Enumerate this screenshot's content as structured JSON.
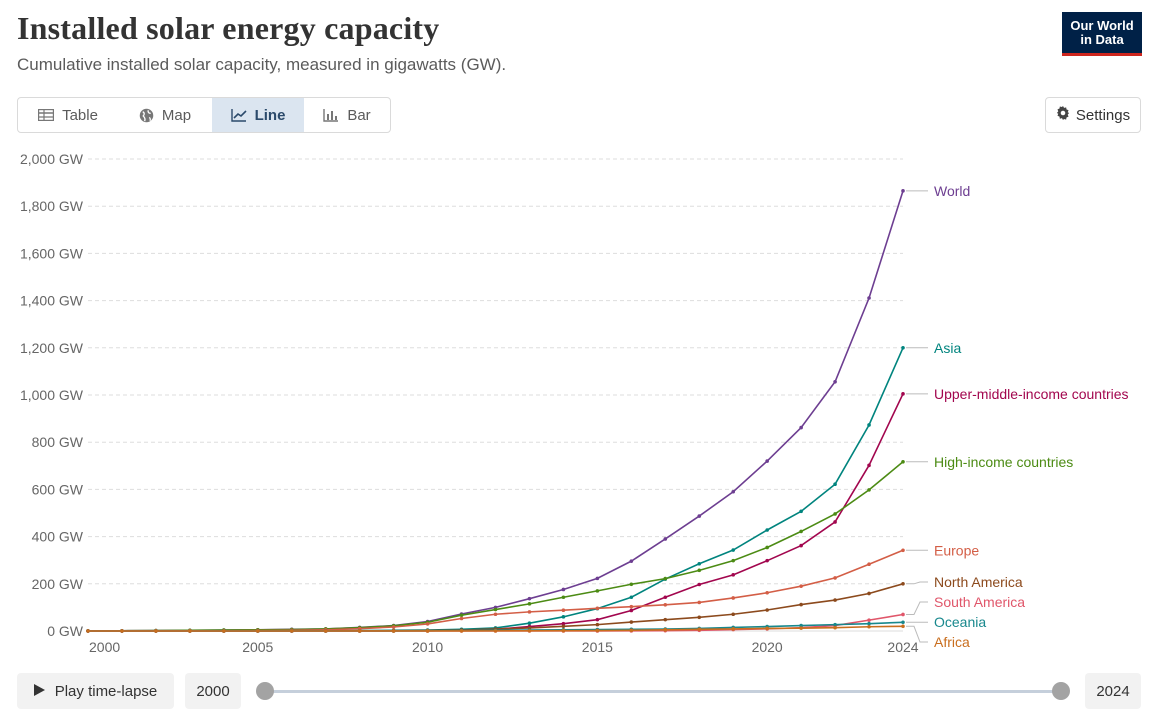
{
  "header": {
    "title": "Installed solar energy capacity",
    "subtitle": "Cumulative installed solar capacity, measured in gigawatts (GW).",
    "logo_text": "Our World in Data"
  },
  "tabs": [
    {
      "label": "Table",
      "icon": "table-icon"
    },
    {
      "label": "Map",
      "icon": "globe-icon"
    },
    {
      "label": "Line",
      "icon": "line-chart-icon",
      "active": true
    },
    {
      "label": "Bar",
      "icon": "bar-chart-icon"
    }
  ],
  "settings_label": "Settings",
  "timeline": {
    "play_label": "Play time-lapse",
    "start_year": "2000",
    "end_year": "2024"
  },
  "colors": {
    "World": "#6d3e91",
    "Asia": "#00847e",
    "Upper-middle-income countries": "#a2064e",
    "High-income countries": "#4c8b14",
    "Europe": "#d35e46",
    "North America": "#8c4a1d",
    "South America": "#e0566a",
    "Oceania": "#18888d",
    "Africa": "#c96e1e",
    "grid": "#dddddd",
    "axis_text": "#666666"
  },
  "chart_data": {
    "type": "line",
    "title": "Installed solar energy capacity",
    "ylabel": "",
    "xlabel": "",
    "ylim": [
      0,
      2000
    ],
    "xlim": [
      2000,
      2024
    ],
    "y_ticks": [
      "0 GW",
      "200 GW",
      "400 GW",
      "600 GW",
      "800 GW",
      "1,000 GW",
      "1,200 GW",
      "1,400 GW",
      "1,600 GW",
      "1,800 GW",
      "2,000 GW"
    ],
    "x_ticks": [
      "2000",
      "2005",
      "2010",
      "2015",
      "2020",
      "2024"
    ],
    "grid": "horizontal dashed",
    "legend": "labels at line ends (right)",
    "x": [
      2000,
      2001,
      2002,
      2003,
      2004,
      2005,
      2006,
      2007,
      2008,
      2009,
      2010,
      2011,
      2012,
      2013,
      2014,
      2015,
      2016,
      2017,
      2018,
      2019,
      2020,
      2021,
      2022,
      2023,
      2024
    ],
    "series": [
      {
        "name": "World",
        "values": [
          1,
          1,
          2,
          3,
          4,
          5,
          7,
          9,
          15,
          23,
          40,
          72,
          100,
          137,
          176,
          223,
          296,
          390,
          487,
          590,
          720,
          862,
          1056,
          1411,
          1865
        ]
      },
      {
        "name": "Asia",
        "values": [
          0.3,
          0.4,
          0.5,
          0.6,
          0.8,
          1,
          1.2,
          1.5,
          2,
          3,
          4,
          7,
          13,
          33,
          60,
          95,
          143,
          220,
          285,
          343,
          428,
          507,
          622,
          873,
          1200
        ]
      },
      {
        "name": "Upper-middle-income countries",
        "values": [
          0,
          0,
          0,
          0,
          0,
          0,
          0,
          0,
          0.2,
          0.5,
          1,
          3,
          7,
          19,
          31,
          48,
          87,
          143,
          197,
          238,
          298,
          362,
          462,
          702,
          1005
        ]
      },
      {
        "name": "High-income countries",
        "values": [
          1,
          1,
          2,
          3,
          4,
          5,
          6,
          9,
          14,
          22,
          37,
          67,
          91,
          115,
          143,
          170,
          198,
          222,
          257,
          298,
          354,
          422,
          496,
          598,
          717
        ]
      },
      {
        "name": "Europe",
        "values": [
          0.2,
          0.3,
          0.4,
          0.6,
          1,
          2,
          3,
          5,
          10,
          17,
          30,
          53,
          71,
          81,
          88,
          96,
          103,
          111,
          121,
          140,
          162,
          190,
          225,
          283,
          342
        ]
      },
      {
        "name": "North America",
        "values": [
          0.1,
          0.1,
          0.1,
          0.1,
          0.2,
          0.3,
          0.4,
          0.5,
          0.8,
          1,
          2,
          4,
          8,
          13,
          20,
          27,
          38,
          48,
          58,
          71,
          89,
          112,
          131,
          159,
          200
        ]
      },
      {
        "name": "South America",
        "values": [
          0,
          0,
          0,
          0,
          0,
          0,
          0,
          0,
          0,
          0,
          0,
          0,
          0,
          0,
          0.1,
          0.2,
          0.5,
          1.5,
          3,
          6,
          9,
          14,
          23,
          46,
          70
        ]
      },
      {
        "name": "Oceania",
        "values": [
          0,
          0,
          0,
          0,
          0.1,
          0.1,
          0.1,
          0.1,
          0.1,
          0.2,
          1,
          2,
          3,
          4,
          5,
          6,
          7,
          8,
          11,
          15,
          19,
          23,
          27,
          31,
          37
        ]
      },
      {
        "name": "Africa",
        "values": [
          0,
          0,
          0,
          0,
          0,
          0,
          0,
          0,
          0.1,
          0.1,
          0.2,
          0.3,
          0.5,
          1,
          1.5,
          2,
          3,
          5,
          7,
          9,
          11,
          12,
          14,
          18,
          20
        ]
      }
    ],
    "end_labels": [
      "World",
      "Asia",
      "Upper-middle-income countries",
      "High-income countries",
      "Europe",
      "North America",
      "South America",
      "Oceania",
      "Africa"
    ]
  }
}
